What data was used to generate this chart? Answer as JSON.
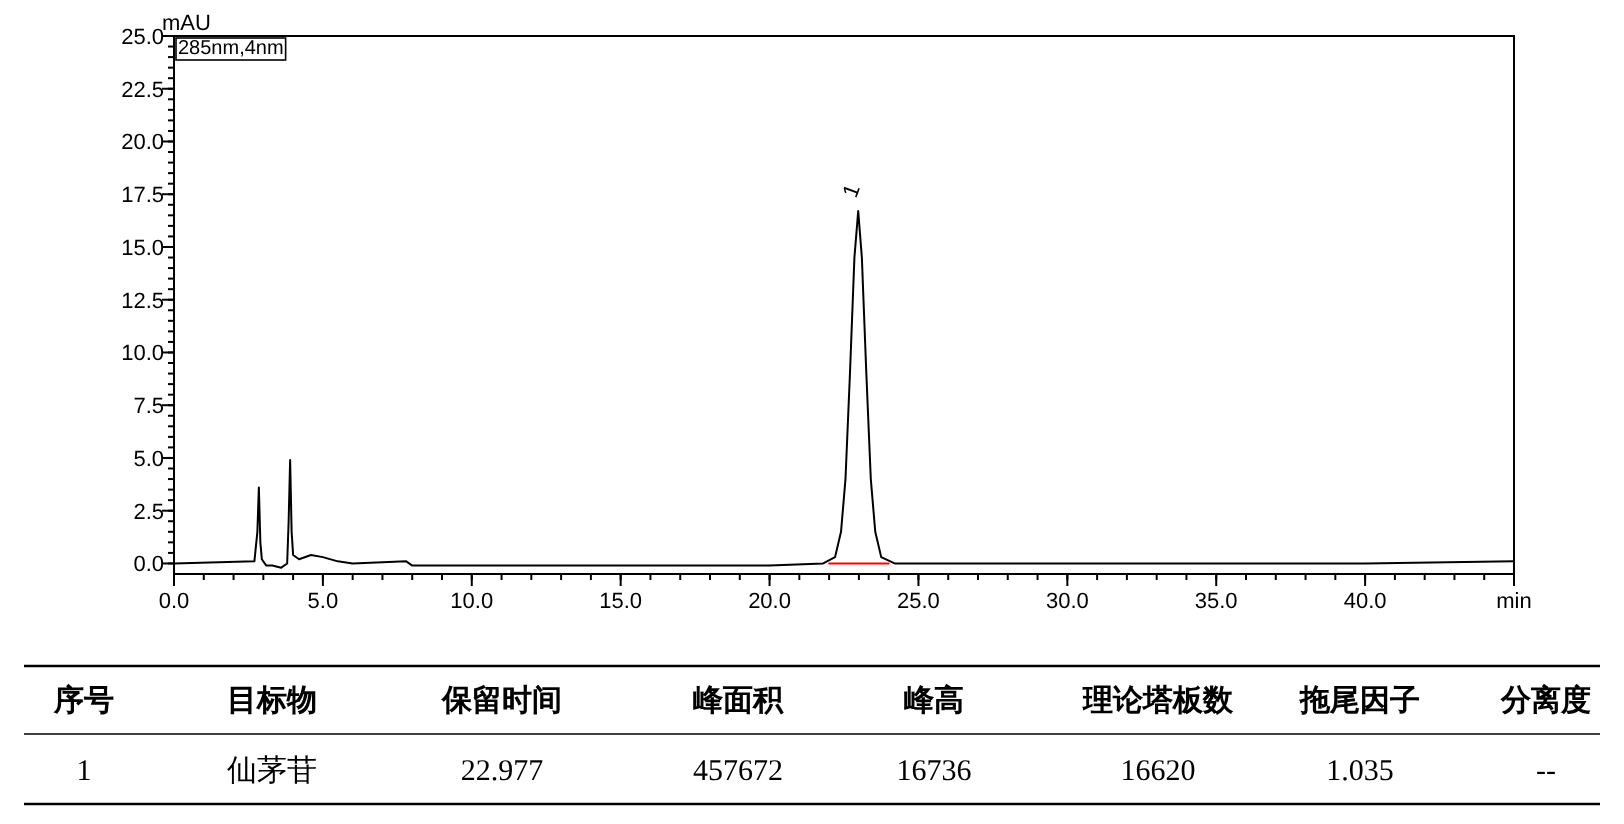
{
  "chart_data": [
    {
      "type": "line",
      "xlabel": "min",
      "ylabel": "mAU",
      "annotations": [
        "285nm,4nm",
        {
          "text": "1",
          "x": 22.977,
          "y": 16.7
        }
      ],
      "xlim": [
        0,
        45
      ],
      "ylim": [
        -0.5,
        25
      ],
      "xticks": [
        {
          "value": 0,
          "label": "0.0"
        },
        {
          "value": 5,
          "label": "5.0"
        },
        {
          "value": 10,
          "label": "10.0"
        },
        {
          "value": 15,
          "label": "15.0"
        },
        {
          "value": 20,
          "label": "20.0"
        },
        {
          "value": 25,
          "label": "25.0"
        },
        {
          "value": 30,
          "label": "30.0"
        },
        {
          "value": 35,
          "label": "35.0"
        },
        {
          "value": 40,
          "label": "40.0"
        },
        {
          "value": 45,
          "label": null
        }
      ],
      "yticks": [
        {
          "value": 0,
          "label": "0.0"
        },
        {
          "value": 2.5,
          "label": "2.5"
        },
        {
          "value": 5,
          "label": "5.0"
        },
        {
          "value": 7.5,
          "label": "7.5"
        },
        {
          "value": 10,
          "label": "10.0"
        },
        {
          "value": 12.5,
          "label": "12.5"
        },
        {
          "value": 15,
          "label": "15.0"
        },
        {
          "value": 17.5,
          "label": "17.5"
        },
        {
          "value": 20,
          "label": "20.0"
        },
        {
          "value": 22.5,
          "label": "22.5"
        },
        {
          "value": 25,
          "label": "25.0"
        }
      ],
      "grid": false,
      "series": [
        {
          "color": "#000000",
          "x": [
            0,
            2.7,
            2.8,
            2.85,
            2.9,
            2.95,
            3.1,
            3.3,
            3.6,
            3.8,
            3.85,
            3.9,
            3.95,
            4.0,
            4.2,
            4.6,
            5.0,
            5.5,
            6.0,
            7.8,
            8.0,
            10,
            15,
            20,
            21.8,
            22.2,
            22.4,
            22.55,
            22.7,
            22.85,
            22.977,
            23.1,
            23.25,
            23.4,
            23.55,
            23.75,
            24.2,
            30,
            35,
            40,
            45
          ],
          "values": [
            0,
            0.1,
            1.5,
            3.6,
            1.0,
            0.2,
            -0.1,
            -0.1,
            -0.2,
            0.0,
            2.0,
            4.9,
            1.5,
            0.4,
            0.2,
            0.4,
            0.3,
            0.1,
            0,
            0.1,
            -0.1,
            -0.1,
            -0.1,
            -0.1,
            0,
            0.3,
            1.5,
            4,
            9,
            14.5,
            16.7,
            14.5,
            9,
            4,
            1.5,
            0.3,
            0,
            0,
            0,
            0,
            0.1
          ]
        },
        {
          "color": "#ff0000",
          "x": [
            22.0,
            24.0
          ],
          "values": [
            0,
            0
          ]
        }
      ]
    },
    {
      "type": "other",
      "annotations": [
        "序号",
        "目标物",
        "保留时间",
        "峰面积",
        "峰高",
        "理论塔板数",
        "拖尾因子",
        "分离度",
        "1",
        "仙茅苷",
        "22.977",
        "457672",
        "16736",
        "16620",
        "1.035",
        "--"
      ]
    }
  ]
}
